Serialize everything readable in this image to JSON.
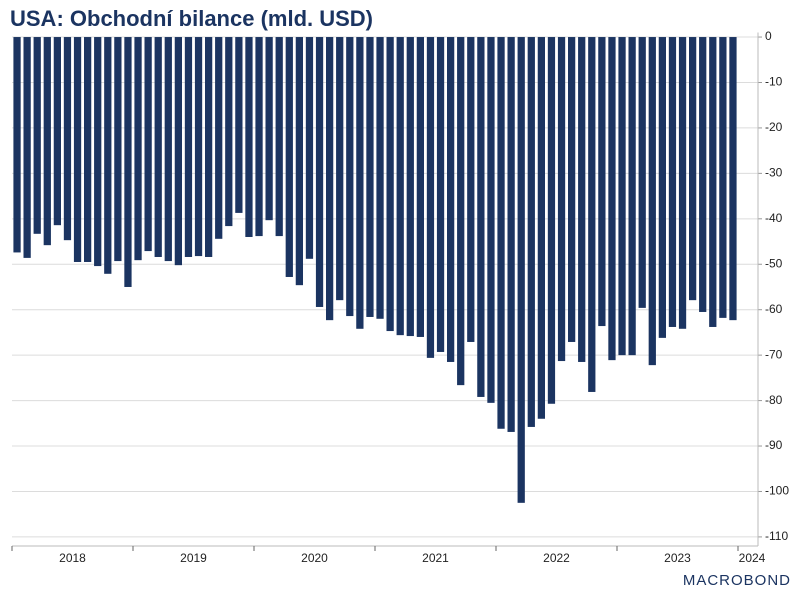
{
  "chart_data": {
    "type": "bar",
    "title": "USA: Obchodní bilance (mld. USD)",
    "categories": [
      null,
      null,
      null,
      null,
      null,
      null,
      null,
      null,
      null,
      null,
      null,
      null,
      null,
      null,
      null,
      null,
      null,
      null,
      null,
      null,
      null,
      null,
      null,
      null,
      null,
      null,
      null,
      null,
      null,
      null,
      null,
      null,
      null,
      null,
      null,
      null,
      null,
      null,
      null,
      null,
      null,
      null,
      null,
      null,
      null,
      null,
      null,
      null,
      null,
      null,
      null,
      null,
      null,
      null,
      null,
      null,
      null,
      null,
      null,
      null,
      null,
      null,
      null,
      null,
      null,
      null,
      null,
      null,
      null,
      null,
      null,
      null
    ],
    "year_labels": [
      "2018",
      "2019",
      "2020",
      "2021",
      "2022",
      "2023",
      "2024"
    ],
    "values": [
      -47.4,
      -48.6,
      -43.3,
      -45.8,
      -41.4,
      -44.7,
      -49.5,
      -49.5,
      -50.4,
      -52.1,
      -49.3,
      -55.0,
      -49.1,
      -47.1,
      -48.4,
      -49.3,
      -50.2,
      -48.4,
      -48.2,
      -48.4,
      -44.4,
      -41.6,
      -38.7,
      -44.0,
      -43.8,
      -40.3,
      -43.8,
      -52.8,
      -54.6,
      -48.8,
      -59.4,
      -62.3,
      -57.9,
      -61.4,
      -64.2,
      -61.6,
      -62.0,
      -64.7,
      -65.6,
      -65.8,
      -66.0,
      -70.6,
      -69.3,
      -71.5,
      -76.6,
      -67.1,
      -79.2,
      -80.5,
      -86.2,
      -86.9,
      -102.5,
      -85.8,
      -84.0,
      -80.7,
      -71.3,
      -67.1,
      -71.5,
      -78.1,
      -63.6,
      -71.1,
      -70.0,
      -70.0,
      -59.6,
      -72.2,
      -66.2,
      -63.8,
      -64.2,
      -57.9,
      -60.5,
      -63.8,
      -61.8,
      -62.3
    ],
    "color": "#1b3461",
    "ylim": [
      -112,
      1
    ],
    "yticks": [
      0,
      -10,
      -20,
      -30,
      -40,
      -50,
      -60,
      -70,
      -80,
      -90,
      -100,
      -110
    ],
    "grid": true,
    "source_logo": "MACROBOND"
  }
}
